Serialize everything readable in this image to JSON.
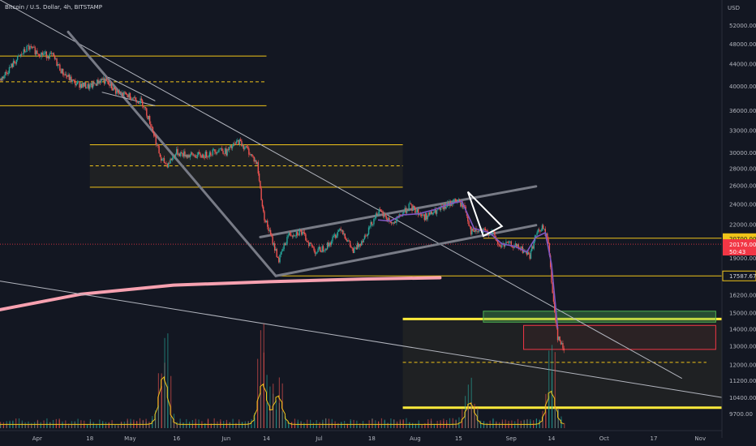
{
  "chart_data": {
    "type": "candlestick",
    "title": "Bitcoin / U.S. Dollar, 4h, BITSTAMP",
    "currency": "USD",
    "y_scale": "log",
    "ylim": [
      9000,
      60000
    ],
    "xlim": [
      "2022-03-20",
      "2022-11-08"
    ],
    "grid": false,
    "y_ticks": [
      52000,
      48000,
      44000,
      40000,
      36000,
      33000,
      30000,
      28000,
      26000,
      24000,
      22000,
      19000,
      16200,
      15000,
      14000,
      13000,
      12000,
      11200,
      10400,
      9700
    ],
    "x_ticks": [
      {
        "date": "2022-04-01",
        "label": "Apr"
      },
      {
        "date": "2022-04-18",
        "label": "18"
      },
      {
        "date": "2022-05-01",
        "label": "May"
      },
      {
        "date": "2022-05-16",
        "label": "16"
      },
      {
        "date": "2022-06-01",
        "label": "Jun"
      },
      {
        "date": "2022-06-14",
        "label": "14"
      },
      {
        "date": "2022-07-01",
        "label": "Jul"
      },
      {
        "date": "2022-07-18",
        "label": "18"
      },
      {
        "date": "2022-08-01",
        "label": "Aug"
      },
      {
        "date": "2022-08-15",
        "label": "15"
      },
      {
        "date": "2022-09-01",
        "label": "Sep"
      },
      {
        "date": "2022-09-14",
        "label": "14"
      },
      {
        "date": "2022-10-01",
        "label": "Oct"
      },
      {
        "date": "2022-10-17",
        "label": "17"
      },
      {
        "date": "2022-11-01",
        "label": "Nov"
      }
    ],
    "price_path": [
      [
        "2022-03-20",
        41000
      ],
      [
        "2022-03-25",
        44500
      ],
      [
        "2022-03-29",
        47200
      ],
      [
        "2022-04-02",
        46000
      ],
      [
        "2022-04-06",
        45500
      ],
      [
        "2022-04-09",
        42500
      ],
      [
        "2022-04-13",
        40500
      ],
      [
        "2022-04-18",
        39800
      ],
      [
        "2022-04-22",
        41200
      ],
      [
        "2022-04-27",
        38800
      ],
      [
        "2022-05-01",
        38300
      ],
      [
        "2022-05-05",
        37200
      ],
      [
        "2022-05-08",
        33500
      ],
      [
        "2022-05-11",
        29000
      ],
      [
        "2022-05-13",
        28500
      ],
      [
        "2022-05-16",
        30000
      ],
      [
        "2022-05-20",
        29600
      ],
      [
        "2022-05-25",
        29600
      ],
      [
        "2022-05-30",
        30500
      ],
      [
        "2022-06-01",
        30000
      ],
      [
        "2022-06-05",
        31500
      ],
      [
        "2022-06-08",
        30300
      ],
      [
        "2022-06-11",
        28500
      ],
      [
        "2022-06-13",
        23000
      ],
      [
        "2022-06-15",
        21200
      ],
      [
        "2022-06-18",
        18800
      ],
      [
        "2022-06-21",
        21000
      ],
      [
        "2022-06-25",
        21300
      ],
      [
        "2022-06-30",
        19500
      ],
      [
        "2022-07-04",
        20100
      ],
      [
        "2022-07-08",
        21700
      ],
      [
        "2022-07-12",
        19500
      ],
      [
        "2022-07-16",
        21000
      ],
      [
        "2022-07-20",
        23300
      ],
      [
        "2022-07-25",
        22000
      ],
      [
        "2022-07-30",
        23800
      ],
      [
        "2022-08-04",
        22700
      ],
      [
        "2022-08-09",
        23400
      ],
      [
        "2022-08-14",
        24400
      ],
      [
        "2022-08-17",
        23700
      ],
      [
        "2022-08-19",
        21300
      ],
      [
        "2022-08-23",
        21300
      ],
      [
        "2022-08-26",
        21200
      ],
      [
        "2022-08-28",
        20000
      ],
      [
        "2022-08-31",
        20200
      ],
      [
        "2022-09-04",
        19800
      ],
      [
        "2022-09-07",
        19200
      ],
      [
        "2022-09-09",
        21000
      ],
      [
        "2022-09-11",
        21700
      ],
      [
        "2022-09-13",
        20500
      ],
      [
        "2022-09-14",
        17000
      ],
      [
        "2022-09-16",
        13500
      ],
      [
        "2022-09-18",
        12800
      ]
    ],
    "overlay_path": [
      [
        "2022-07-20",
        22400
      ],
      [
        "2022-07-24",
        22300
      ],
      [
        "2022-07-28",
        22900
      ],
      [
        "2022-08-02",
        23000
      ],
      [
        "2022-08-07",
        23400
      ],
      [
        "2022-08-12",
        24000
      ],
      [
        "2022-08-16",
        24300
      ],
      [
        "2022-08-20",
        21600
      ],
      [
        "2022-08-25",
        21200
      ],
      [
        "2022-08-29",
        20200
      ],
      [
        "2022-09-02",
        20000
      ],
      [
        "2022-09-06",
        19500
      ],
      [
        "2022-09-09",
        20800
      ],
      [
        "2022-09-12",
        21200
      ],
      [
        "2022-09-14",
        18500
      ],
      [
        "2022-09-16",
        14000
      ]
    ],
    "volume": {
      "peaks": [
        {
          "date": "2022-05-12",
          "value": 1.0
        },
        {
          "date": "2022-06-13",
          "value": 0.85
        },
        {
          "date": "2022-06-18",
          "value": 0.6
        },
        {
          "date": "2022-08-19",
          "value": 0.45
        },
        {
          "date": "2022-09-14",
          "value": 0.7
        }
      ],
      "baseline": 0.08
    },
    "price_labels": [
      {
        "value": 20700.0,
        "label": "20700.00",
        "style": "yellow"
      },
      {
        "value": 20176.0,
        "label": "20176.00",
        "sublabel": "50:43",
        "style": "red"
      },
      {
        "value": 17587.67,
        "label": "17587.67",
        "style": "outline"
      }
    ],
    "levels": [
      {
        "value": 45500,
        "from": "2022-03-20",
        "to": "2022-06-14",
        "style": "solid"
      },
      {
        "value": 40700,
        "from": "2022-03-20",
        "to": "2022-06-14",
        "style": "dashed"
      },
      {
        "value": 36700,
        "from": "2022-03-20",
        "to": "2022-06-14",
        "style": "solid"
      },
      {
        "value": 20700,
        "from": "2022-08-23",
        "to": "2022-11-08",
        "style": "solid"
      },
      {
        "value": 17587.67,
        "from": "2022-06-17",
        "to": "2022-11-08",
        "style": "solid"
      },
      {
        "value": 12100,
        "from": "2022-07-28",
        "to": "2022-11-03",
        "style": "dashed"
      }
    ],
    "zones": [
      {
        "top": 31000,
        "bottom": 25800,
        "mid": 28300,
        "from": "2022-04-18",
        "to": "2022-07-28"
      },
      {
        "top": 14600,
        "bottom": 9900,
        "from": "2022-07-28",
        "to": "2022-11-08",
        "thick_top": 14600,
        "thick_bottom": 9950
      }
    ],
    "boxes": [
      {
        "top": 15100,
        "bottom": 14400,
        "from": "2022-08-23",
        "to": "2022-11-06",
        "color": "#4caf50"
      },
      {
        "top": 14200,
        "bottom": 12800,
        "from": "2022-09-05",
        "to": "2022-11-06",
        "color": "#f23645"
      }
    ],
    "trendlines": [
      {
        "p1": [
          "2022-03-20",
          58000
        ],
        "p2": [
          "2022-10-26",
          11300
        ],
        "color": "#b2b5be",
        "width": 1
      },
      {
        "p1": [
          "2022-03-20",
          17200
        ],
        "p2": [
          "2022-11-08",
          10400
        ],
        "color": "#b2b5be",
        "width": 1
      },
      {
        "p1": [
          "2022-04-11",
          50500
        ],
        "p2": [
          "2022-06-17",
          17587.67
        ],
        "color": "#787b86",
        "width": 3
      },
      {
        "p1": [
          "2022-06-12",
          20800
        ],
        "p2": [
          "2022-09-09",
          25900
        ],
        "color": "#787b86",
        "width": 3
      },
      {
        "p1": [
          "2022-06-17",
          17587.67
        ],
        "p2": [
          "2022-09-09",
          21900
        ],
        "color": "#787b86",
        "width": 3
      },
      {
        "p1": [
          "2022-04-22",
          38900
        ],
        "p2": [
          "2022-05-09",
          36700
        ],
        "color": "#b2b5be",
        "width": 1
      },
      {
        "p1": [
          "2022-04-24",
          41500
        ],
        "p2": [
          "2022-05-09",
          37500
        ],
        "color": "#b2b5be",
        "width": 1
      }
    ],
    "flag": [
      [
        "2022-08-18",
        25300
      ],
      [
        "2022-08-23",
        20900
      ],
      [
        "2022-08-29",
        21800
      ]
    ],
    "moving_average": [
      [
        "2022-03-20",
        15200
      ],
      [
        "2022-04-15",
        16250
      ],
      [
        "2022-05-15",
        16900
      ],
      [
        "2022-06-15",
        17150
      ],
      [
        "2022-07-15",
        17350
      ],
      [
        "2022-08-09",
        17450
      ]
    ]
  }
}
